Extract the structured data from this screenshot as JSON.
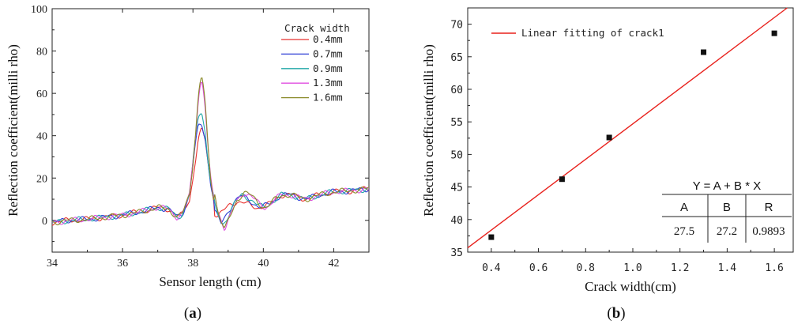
{
  "chart_data": [
    {
      "type": "line",
      "caption_letter": "a",
      "xlabel": "Sensor length (cm)",
      "ylabel": "Reflection coefficient(milli rho)",
      "xlim": [
        34,
        43
      ],
      "ylim": [
        -15,
        100
      ],
      "xticks": [
        34,
        36,
        38,
        40,
        42
      ],
      "yticks": [
        0,
        20,
        40,
        60,
        80,
        100
      ],
      "legend_title": "Crack width",
      "legend_position": "top-right",
      "base_profile": [
        [
          34,
          -1
        ],
        [
          34.5,
          0
        ],
        [
          35,
          0.5
        ],
        [
          35.5,
          1.5
        ],
        [
          36,
          2.5
        ],
        [
          36.5,
          4
        ],
        [
          37,
          6
        ],
        [
          37.3,
          5.5
        ],
        [
          37.55,
          1.5
        ],
        [
          37.7,
          3
        ],
        [
          37.9,
          12
        ],
        [
          38.05,
          32
        ],
        [
          38.15,
          42
        ],
        [
          38.25,
          44
        ],
        [
          38.35,
          38
        ],
        [
          38.5,
          18
        ],
        [
          38.65,
          5
        ],
        [
          38.85,
          -3
        ],
        [
          39.0,
          2
        ],
        [
          39.2,
          9
        ],
        [
          39.4,
          12.5
        ],
        [
          39.6,
          11
        ],
        [
          39.8,
          8
        ],
        [
          40.0,
          6
        ],
        [
          40.2,
          8
        ],
        [
          40.5,
          12
        ],
        [
          40.8,
          12
        ],
        [
          41.2,
          10
        ],
        [
          41.6,
          12
        ],
        [
          42,
          13.5
        ],
        [
          42.5,
          14
        ],
        [
          43,
          15
        ]
      ],
      "series": [
        {
          "name": "0.4mm",
          "color": "#e8312e",
          "peak": 38,
          "peak_x": 38.05,
          "sep_shift": -0.15,
          "sep_scale": 0.45,
          "phase": 1
        },
        {
          "name": "0.7mm",
          "color": "#2d3dd6",
          "peak": 46,
          "peak_x": 38.15,
          "sep_shift": -0.05,
          "sep_scale": 0.85,
          "phase": 2
        },
        {
          "name": "0.9mm",
          "color": "#20a7a7",
          "peak": 52,
          "peak_x": 38.2,
          "sep_shift": 0,
          "sep_scale": 0.9,
          "phase": 3
        },
        {
          "name": "1.3mm",
          "color": "#e04de0",
          "peak": 66,
          "peak_x": 38.25,
          "sep_shift": 0.05,
          "sep_scale": 1.1,
          "phase": 4
        },
        {
          "name": "1.6mm",
          "color": "#8a8a2a",
          "peak": 68,
          "peak_x": 38.25,
          "sep_shift": 0.05,
          "sep_scale": 1.15,
          "phase": 5
        }
      ]
    },
    {
      "type": "scatter",
      "caption_letter": "b",
      "xlabel": "Crack width(cm)",
      "ylabel": "Reflection coefficient(milli rho)",
      "xlim": [
        0.3,
        1.68
      ],
      "ylim": [
        35,
        72.5
      ],
      "xticks": [
        0.4,
        0.6,
        0.8,
        1.0,
        1.2,
        1.4,
        1.6
      ],
      "xtick_labels": [
        "0.4",
        "0.6",
        "0.8",
        "1.0",
        "1.2",
        "1.4",
        "1.6"
      ],
      "yticks": [
        35,
        40,
        45,
        50,
        55,
        60,
        65,
        70
      ],
      "points": {
        "x": [
          0.4,
          0.7,
          0.9,
          1.3,
          1.6
        ],
        "y": [
          37.3,
          46.2,
          52.6,
          65.7,
          68.6
        ]
      },
      "fit": {
        "A": 27.5,
        "B": 27.2,
        "x_range": [
          0.3,
          1.68
        ],
        "color": "#e8211c"
      },
      "legend_label": "Linear fitting of crack1",
      "table": {
        "equation": "Y = A + B * X",
        "headers": [
          "A",
          "B",
          "R"
        ],
        "values": [
          "27.5",
          "27.2",
          "0.9893"
        ]
      }
    }
  ]
}
